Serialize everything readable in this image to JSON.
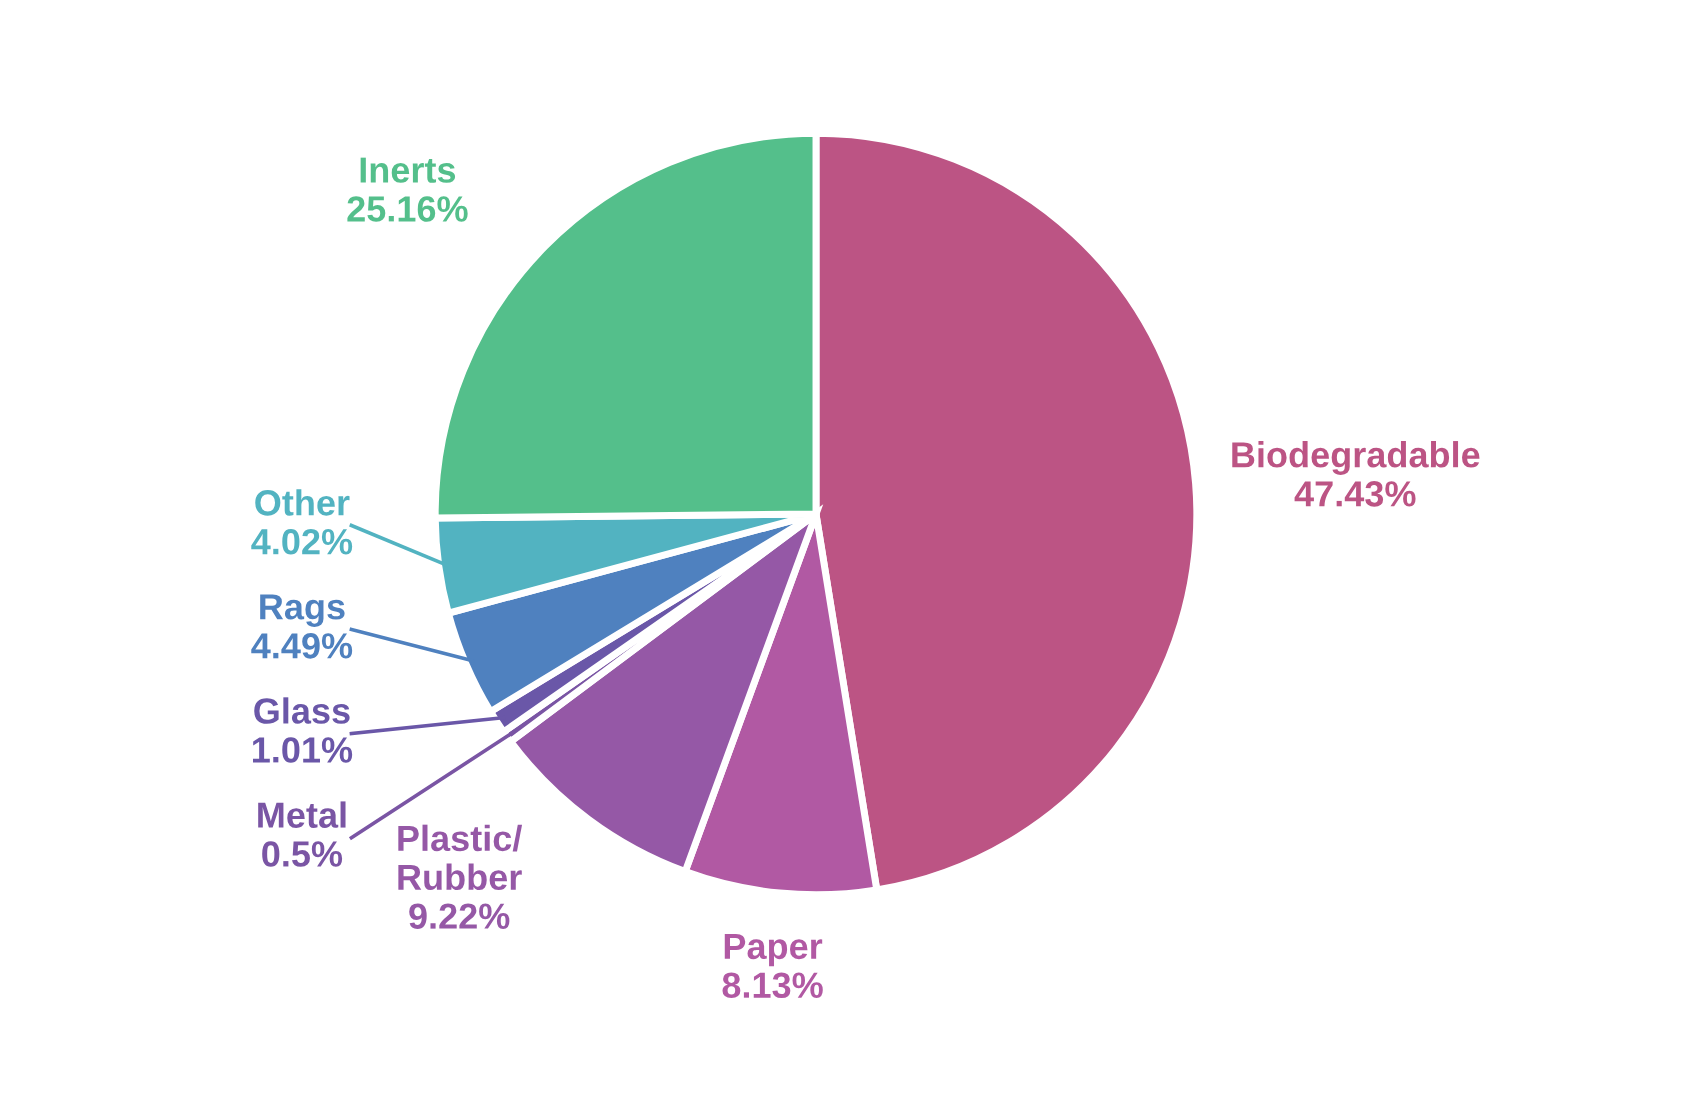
{
  "chart_data": {
    "type": "pie",
    "categories": [
      "Biodegradable",
      "Paper",
      "Plastic/\nRubber",
      "Metal",
      "Glass",
      "Rags",
      "Other",
      "Inerts"
    ],
    "values": [
      47.43,
      8.13,
      9.22,
      0.5,
      1.01,
      4.49,
      4.02,
      25.16
    ],
    "colors": [
      "#bc5484",
      "#b159a3",
      "#9558a6",
      "#7a55a4",
      "#6a57a8",
      "#4f81bf",
      "#52b3c1",
      "#54bf8b"
    ],
    "value_labels": [
      "47.43%",
      "8.13%",
      "9.22%",
      "0.5%",
      "1.01%",
      "4.49%",
      "4.02%",
      "25.16%"
    ]
  }
}
